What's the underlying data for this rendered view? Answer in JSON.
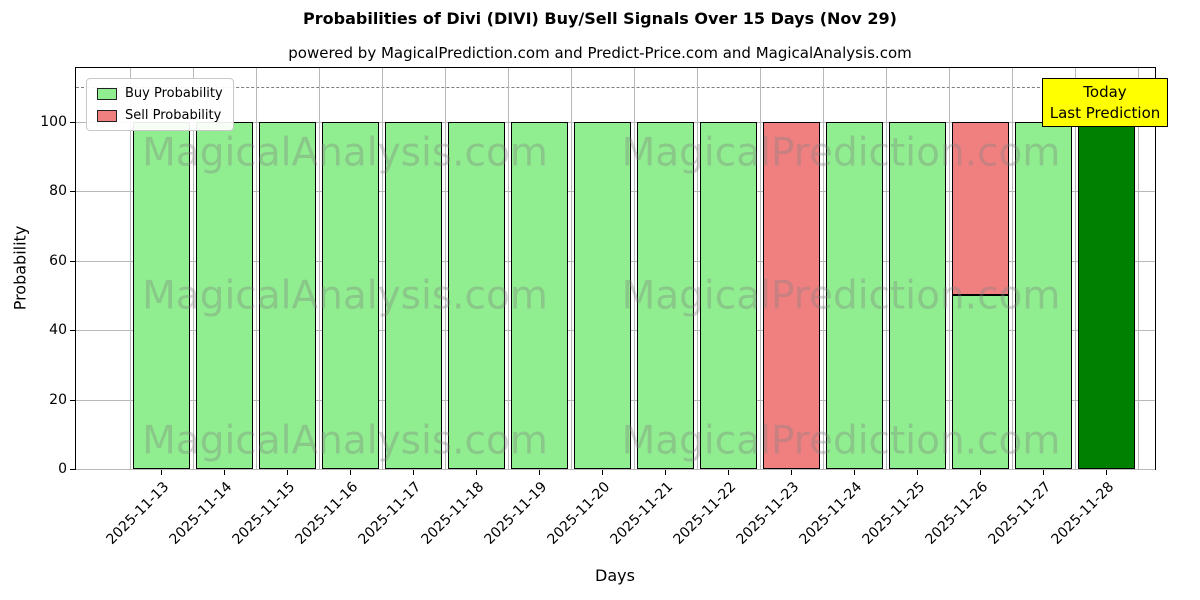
{
  "chart_data": {
    "type": "bar",
    "stacked": true,
    "title": "Probabilities of Divi (DIVI) Buy/Sell Signals Over 15 Days (Nov 29)",
    "subtitle": "powered by MagicalPrediction.com and Predict-Price.com and MagicalAnalysis.com",
    "xlabel": "Days",
    "ylabel": "Probability",
    "categories": [
      "2025-11-13",
      "2025-11-14",
      "2025-11-15",
      "2025-11-16",
      "2025-11-17",
      "2025-11-18",
      "2025-11-19",
      "2025-11-20",
      "2025-11-21",
      "2025-11-22",
      "2025-11-23",
      "2025-11-24",
      "2025-11-25",
      "2025-11-26",
      "2025-11-27",
      "2025-11-28"
    ],
    "series": [
      {
        "name": "Buy Probability",
        "color": "#90ee90",
        "values": [
          100,
          100,
          100,
          100,
          100,
          100,
          100,
          100,
          100,
          100,
          0,
          100,
          100,
          50,
          100,
          100
        ]
      },
      {
        "name": "Sell Probability",
        "color": "#f08080",
        "values": [
          0,
          0,
          0,
          0,
          0,
          0,
          0,
          0,
          0,
          0,
          100,
          0,
          0,
          50,
          0,
          0
        ]
      }
    ],
    "today_index": 15,
    "today_bar_color": "#008000",
    "bar_edge_color": "#000000",
    "ylim": [
      0,
      115.5
    ],
    "yticks": [
      0,
      20,
      40,
      60,
      80,
      100
    ],
    "dashed_line_y": 110,
    "grid": true,
    "legend_position": "upper left",
    "annotation": {
      "line1": "Today",
      "line2": "Last Prediction",
      "bg_color": "#ffff00"
    },
    "watermarks": [
      "MagicalAnalysis.com",
      "MagicalPrediction.com"
    ]
  }
}
